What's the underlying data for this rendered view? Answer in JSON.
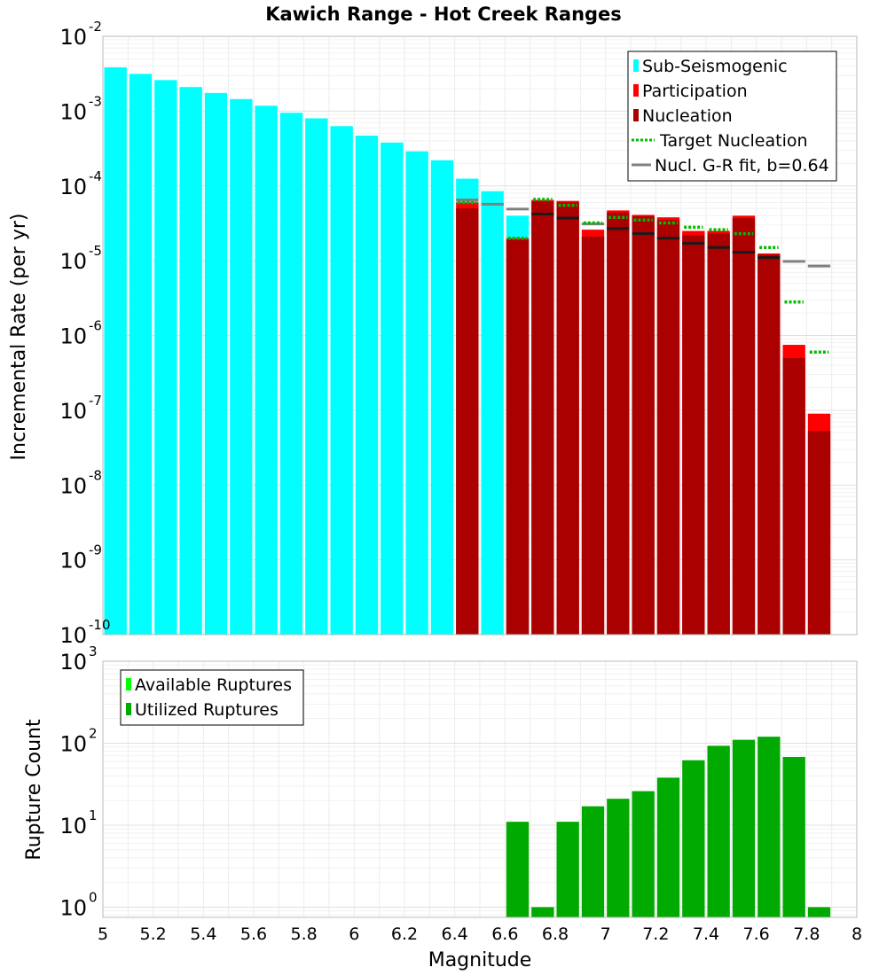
{
  "figure": {
    "title": "Kawich Range - Hot Creek Ranges",
    "xlabel": "Magnitude"
  },
  "chart_data": [
    {
      "type": "bar",
      "name": "incremental-rate-panel",
      "ylabel": "Incremental Rate (per yr)",
      "yscale": "log",
      "ylim": [
        1e-10,
        0.01
      ],
      "y_ticks": [
        {
          "base": "10",
          "exp": "-10",
          "value": 1e-10
        },
        {
          "base": "10",
          "exp": "-9",
          "value": 1e-09
        },
        {
          "base": "10",
          "exp": "-8",
          "value": 1e-08
        },
        {
          "base": "10",
          "exp": "-7",
          "value": 1e-07
        },
        {
          "base": "10",
          "exp": "-6",
          "value": 1e-06
        },
        {
          "base": "10",
          "exp": "-5",
          "value": 1e-05
        },
        {
          "base": "10",
          "exp": "-4",
          "value": 0.0001
        },
        {
          "base": "10",
          "exp": "-3",
          "value": 0.001
        },
        {
          "base": "10",
          "exp": "-2",
          "value": 0.01
        }
      ],
      "legend": {
        "placement": "top-right",
        "entries": [
          {
            "label": "Sub-Seismogenic",
            "color": "#00ffff",
            "kind": "box"
          },
          {
            "label": "Participation",
            "color": "#ff0000",
            "kind": "box"
          },
          {
            "label": "Nucleation",
            "color": "#aa0000",
            "kind": "box"
          },
          {
            "label": "Target Nucleation",
            "color": "#00bb00",
            "kind": "dotted"
          },
          {
            "label": "Nucl. G-R fit, b=0.64",
            "color": "#808080",
            "kind": "line"
          }
        ]
      },
      "colors": {
        "sub_seismogenic": "#00ffff",
        "participation": "#ff0000",
        "nucleation": "#aa0000",
        "target": "#00bb00",
        "gr_fit": "#808080",
        "nucl_line": "#1a1a1a"
      },
      "series": [
        {
          "name": "Sub-Seismogenic",
          "x": [
            5.05,
            5.15,
            5.25,
            5.35,
            5.45,
            5.55,
            5.65,
            5.75,
            5.85,
            5.95,
            6.05,
            6.15,
            6.25,
            6.35,
            6.45,
            6.55,
            6.65
          ],
          "values": [
            0.00385,
            0.00315,
            0.0026,
            0.0021,
            0.00175,
            0.00145,
            0.00118,
            0.00095,
            0.0008,
            0.00063,
            0.00047,
            0.00038,
            0.00029,
            0.00022,
            0.000125,
            8.5e-05,
            4e-05
          ]
        },
        {
          "name": "Participation",
          "x": [
            6.45,
            6.65,
            6.75,
            6.85,
            6.95,
            7.05,
            7.15,
            7.25,
            7.35,
            7.45,
            7.55,
            7.65,
            7.75,
            7.85
          ],
          "values": [
            6e-05,
            2e-05,
            6.5e-05,
            6.3e-05,
            2.6e-05,
            4.7e-05,
            4.1e-05,
            3.8e-05,
            2.5e-05,
            2.5e-05,
            4e-05,
            1.25e-05,
            7.5e-07,
            9e-08
          ]
        },
        {
          "name": "Nucleation",
          "x": [
            6.45,
            6.65,
            6.75,
            6.85,
            6.95,
            7.05,
            7.15,
            7.25,
            7.35,
            7.45,
            7.55,
            7.65,
            7.75,
            7.85
          ],
          "values": [
            5e-05,
            1.9e-05,
            6.2e-05,
            6e-05,
            2.1e-05,
            4.4e-05,
            3.9e-05,
            3.5e-05,
            2.2e-05,
            2.3e-05,
            3.7e-05,
            1.2e-05,
            5e-07,
            5.3e-08
          ]
        },
        {
          "name": "Target Nucleation",
          "x": [
            6.45,
            6.65,
            6.75,
            6.85,
            6.95,
            7.05,
            7.15,
            7.25,
            7.35,
            7.45,
            7.55,
            7.65,
            7.75,
            7.85
          ],
          "values": [
            6e-05,
            2e-05,
            6.6e-05,
            5.5e-05,
            3.2e-05,
            3.8e-05,
            3.5e-05,
            3.2e-05,
            2.8e-05,
            2.6e-05,
            2.3e-05,
            1.5e-05,
            2.8e-06,
            6e-07
          ]
        },
        {
          "name": "Nucl. G-R fit, b=0.64",
          "x": [
            6.45,
            6.55,
            6.65,
            6.75,
            6.85,
            6.95,
            7.05,
            7.15,
            7.25,
            7.35,
            7.45,
            7.55,
            7.65,
            7.75,
            7.85
          ],
          "values": [
            6.5e-05,
            5.7e-05,
            4.9e-05,
            4.2e-05,
            3.7e-05,
            3.1e-05,
            2.7e-05,
            2.3e-05,
            2e-05,
            1.7e-05,
            1.5e-05,
            1.3e-05,
            1.1e-05,
            9.8e-06,
            8.5e-06
          ]
        }
      ]
    },
    {
      "type": "bar",
      "name": "rupture-count-panel",
      "ylabel": "Rupture Count",
      "yscale": "log",
      "ylim": [
        0.75,
        1000
      ],
      "y_ticks": [
        {
          "base": "10",
          "exp": "0",
          "value": 1
        },
        {
          "base": "10",
          "exp": "1",
          "value": 10
        },
        {
          "base": "10",
          "exp": "2",
          "value": 100
        },
        {
          "base": "10",
          "exp": "3",
          "value": 1000
        }
      ],
      "legend": {
        "placement": "top-left",
        "entries": [
          {
            "label": "Available Ruptures",
            "color": "#00ff00",
            "kind": "box"
          },
          {
            "label": "Utilized Ruptures",
            "color": "#00aa00",
            "kind": "box"
          }
        ]
      },
      "colors": {
        "available": "#00ff00",
        "utilized": "#00aa00"
      },
      "series": [
        {
          "name": "Utilized Ruptures",
          "x": [
            6.65,
            6.75,
            6.85,
            6.95,
            7.05,
            7.15,
            7.25,
            7.35,
            7.45,
            7.55,
            7.65,
            7.75,
            7.85
          ],
          "values": [
            11,
            1,
            11,
            17,
            21,
            26,
            38,
            62,
            93,
            110,
            120,
            68,
            1
          ]
        }
      ]
    }
  ],
  "x_axis": {
    "xlim": [
      5,
      8
    ],
    "ticks": [
      {
        "value": 5,
        "label": "5"
      },
      {
        "value": 5.2,
        "label": "5.2"
      },
      {
        "value": 5.4,
        "label": "5.4"
      },
      {
        "value": 5.6,
        "label": "5.6"
      },
      {
        "value": 5.8,
        "label": "5.8"
      },
      {
        "value": 6,
        "label": "6"
      },
      {
        "value": 6.2,
        "label": "6.2"
      },
      {
        "value": 6.4,
        "label": "6.4"
      },
      {
        "value": 6.6,
        "label": "6.6"
      },
      {
        "value": 6.8,
        "label": "6.8"
      },
      {
        "value": 7,
        "label": "7"
      },
      {
        "value": 7.2,
        "label": "7.2"
      },
      {
        "value": 7.4,
        "label": "7.4"
      },
      {
        "value": 7.6,
        "label": "7.6"
      },
      {
        "value": 7.8,
        "label": "7.8"
      },
      {
        "value": 8,
        "label": "8"
      }
    ]
  }
}
